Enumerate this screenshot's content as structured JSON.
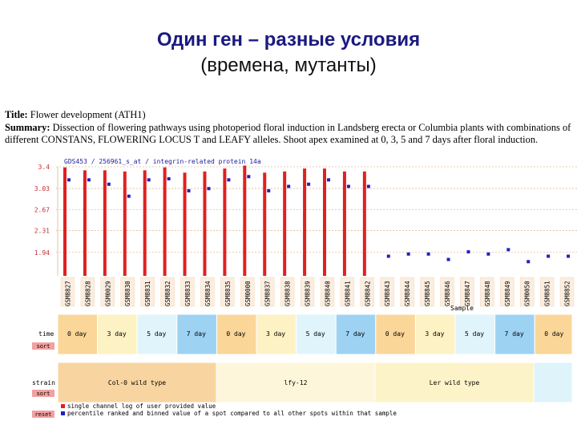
{
  "slide": {
    "title_line1": "Один ген – разные условия",
    "title_line2": "(времена, мутанты)"
  },
  "dataset": {
    "title_label": "Title:",
    "title": "Flower development (ATH1)",
    "summary_label": "Summary:",
    "summary": "Dissection of flowering pathways using photoperiod floral induction in Landsberg erecta or Columbia plants with combinations of different CONSTANS, FLOWERING LOCUS T and LEAFY alleles. Shoot apex examined at 0, 3, 5 and 7 days after floral induction."
  },
  "chart_data": {
    "type": "bar",
    "title": "GDS453 / 256961_s_at / integrin-related protein 14a",
    "xlabel": "Sample",
    "ylabel": "",
    "ylim": [
      1.54,
      3.4
    ],
    "yticks": [
      "3.4",
      "3.03",
      "2.67",
      "2.31",
      "1.94"
    ],
    "y_tick_values": [
      3.4,
      3.03,
      2.67,
      2.31,
      1.94
    ],
    "grid": true,
    "categories": [
      "GSM8827",
      "GSM8828",
      "GSM0029",
      "GSM8830",
      "GSM8831",
      "GSM8832",
      "GSM8833",
      "GSM8834",
      "GSM8835",
      "GSM0000",
      "GSM8837",
      "GSM8838",
      "GSM8839",
      "GSM8840",
      "GSM8841",
      "GSM8842",
      "GSM8843",
      "GSM8844",
      "GSM8845",
      "GSM8846",
      "GSM8847",
      "GSM8848",
      "GSM8849",
      "GSM0050",
      "GSM8851",
      "GSM8852"
    ],
    "series": [
      {
        "name": "single channel log of user provided value",
        "color": "#e02020",
        "values": [
          3.39,
          3.34,
          3.34,
          3.32,
          3.34,
          3.39,
          3.3,
          3.32,
          3.37,
          3.42,
          3.3,
          3.32,
          3.37,
          3.37,
          3.32,
          3.32,
          1.54,
          1.54,
          1.54,
          1.54,
          1.54,
          1.54,
          1.54,
          1.54,
          1.54,
          1.54
        ]
      },
      {
        "name": "percentile ranked and binned value of a spot compared to all other spots within that sample",
        "color": "#2020c0",
        "values": [
          88,
          88,
          84,
          73,
          88,
          89,
          78,
          80,
          88,
          91,
          78,
          82,
          84,
          88,
          82,
          82,
          18,
          20,
          20,
          15,
          22,
          20,
          24,
          13,
          18,
          18
        ]
      }
    ],
    "rank_range": [
      0,
      100
    ]
  },
  "factors": {
    "time_label": "time",
    "time_values": [
      "0 day",
      "3 day",
      "5 day",
      "7 day",
      "0 day",
      "3 day",
      "5 day",
      "7 day",
      "0 day",
      "3 day",
      "5 day",
      "7 day",
      "0 day"
    ],
    "strain_label": "strain",
    "strain_values": [
      "Col-0 wild type",
      "lfy-12",
      "Ler wild type",
      ""
    ],
    "sort_label": "sort",
    "reset_label": "reset",
    "colors": {
      "day0": "#fbd699",
      "day3": "#fdf2c4",
      "day5": "#e0f4fb",
      "day7": "#9dd2f3",
      "col0": "#f8d5a0",
      "lfy12": "#fdf6da",
      "ler": "#fcf3c8",
      "next": "#dff3fb",
      "button": "#f3a0a0"
    }
  },
  "legend": {
    "red": "single channel log of user provided value",
    "blue": "percentile ranked and binned value of a spot compared to all other spots within that sample"
  }
}
